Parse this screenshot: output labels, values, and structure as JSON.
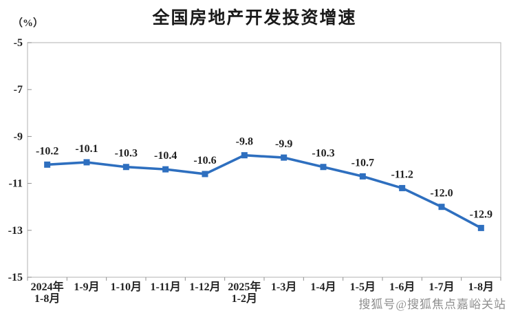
{
  "header": {
    "title": "全国房地产开发投资增速",
    "unit_label": "（%）"
  },
  "watermark": {
    "text": "搜狐号@搜狐焦点嘉峪关站"
  },
  "chart_data": {
    "type": "line",
    "title": "全国房地产开发投资增速",
    "ylabel": "（%）",
    "xlabel": "",
    "categories": [
      [
        "2024年",
        "1-8月"
      ],
      [
        "1-9月"
      ],
      [
        "1-10月"
      ],
      [
        "1-11月"
      ],
      [
        "1-12月"
      ],
      [
        "2025年",
        "1-2月"
      ],
      [
        "1-3月"
      ],
      [
        "1-4月"
      ],
      [
        "1-5月"
      ],
      [
        "1-6月"
      ],
      [
        "1-7月"
      ],
      [
        "1-8月"
      ]
    ],
    "values": [
      -10.2,
      -10.1,
      -10.3,
      -10.4,
      -10.6,
      -9.8,
      -9.9,
      -10.3,
      -10.7,
      -11.2,
      -12.0,
      -12.9
    ],
    "value_labels": [
      "-10.2",
      "-10.1",
      "-10.3",
      "-10.4",
      "-10.6",
      "-9.8",
      "-9.9",
      "-10.3",
      "-10.7",
      "-11.2",
      "-12.0",
      "-12.9"
    ],
    "yticks": [
      -5,
      -7,
      -9,
      -11,
      -13,
      -15
    ],
    "ylim": [
      -15,
      -5
    ],
    "grid": false,
    "legend": "none",
    "line_color": "#2e6fbf",
    "marker": "square",
    "axis_color": "#bfbfbf",
    "tick_color": "#909090"
  }
}
